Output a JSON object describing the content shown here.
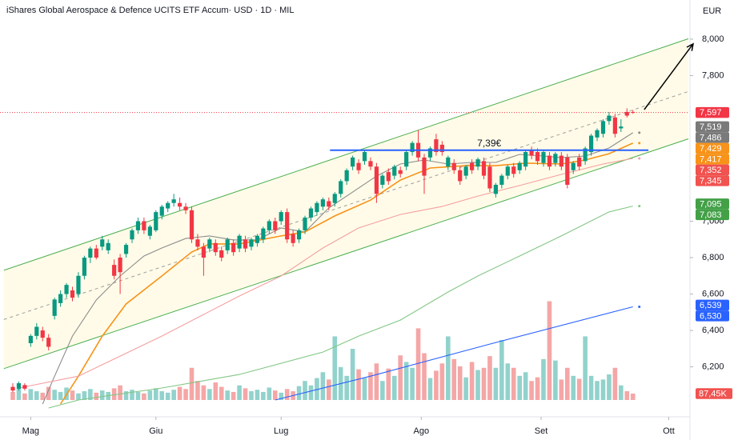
{
  "chart_data": {
    "type": "candlestick",
    "title": "iShares Global Aerospace & Defence UCITS ETF Accum· USD · 1D · MIL",
    "currency": "EUR",
    "xlim": [
      -2.15,
      113.3
    ],
    "ylim": [
      5.93,
      8.215
    ],
    "yticks": [
      {
        "value": 8.0,
        "label": "8,000"
      },
      {
        "value": 7.8,
        "label": "7,800"
      },
      {
        "value": 7.0,
        "label": "7,000"
      },
      {
        "value": 6.8,
        "label": "6,800"
      },
      {
        "value": 6.6,
        "label": "6,600"
      },
      {
        "value": 6.4,
        "label": "6,400"
      },
      {
        "value": 6.2,
        "label": "6,200"
      }
    ],
    "xticks": [
      {
        "value": 3,
        "label": "Mag"
      },
      {
        "value": 24,
        "label": "Giu"
      },
      {
        "value": 45,
        "label": "Lug"
      },
      {
        "value": 68.5,
        "label": "Ago"
      },
      {
        "value": 88.6,
        "label": "Set"
      },
      {
        "value": 110,
        "label": "Ott"
      }
    ],
    "up_color": "#089981",
    "down_color": "#f23645",
    "volume_up_color": "#92d2cc",
    "volume_down_color": "#f5a6a6",
    "volume_lim": [
      0,
      1400
    ],
    "ohlc": [
      [
        6.09,
        6.11,
        6.06,
        6.07
      ],
      [
        6.08,
        6.12,
        6.07,
        6.11
      ],
      [
        6.1,
        6.11,
        6.07,
        6.08
      ],
      [
        6.33,
        6.38,
        6.31,
        6.37
      ],
      [
        6.37,
        6.44,
        6.35,
        6.42
      ],
      [
        6.4,
        6.42,
        6.34,
        6.36
      ],
      [
        6.36,
        6.38,
        6.29,
        6.31
      ],
      [
        6.48,
        6.58,
        6.46,
        6.57
      ],
      [
        6.55,
        6.62,
        6.53,
        6.6
      ],
      [
        6.6,
        6.66,
        6.58,
        6.65
      ],
      [
        6.62,
        6.64,
        6.56,
        6.58
      ],
      [
        6.6,
        6.72,
        6.58,
        6.7
      ],
      [
        6.7,
        6.81,
        6.68,
        6.8
      ],
      [
        6.8,
        6.86,
        6.77,
        6.85
      ],
      [
        6.85,
        6.87,
        6.79,
        6.8
      ],
      [
        6.86,
        6.92,
        6.84,
        6.9
      ],
      [
        6.84,
        6.9,
        6.82,
        6.88
      ],
      [
        6.76,
        6.79,
        6.68,
        6.7
      ],
      [
        6.8,
        6.82,
        6.6,
        6.72
      ],
      [
        6.82,
        6.88,
        6.8,
        6.87
      ],
      [
        6.9,
        6.96,
        6.88,
        6.95
      ],
      [
        6.95,
        7.02,
        6.93,
        7.0
      ],
      [
        7.0,
        7.02,
        6.93,
        6.95
      ],
      [
        6.92,
        6.98,
        6.9,
        6.97
      ],
      [
        6.95,
        7.06,
        6.94,
        7.05
      ],
      [
        7.03,
        7.09,
        7.01,
        7.08
      ],
      [
        7.07,
        7.11,
        7.05,
        7.1
      ],
      [
        7.1,
        7.15,
        7.08,
        7.12
      ],
      [
        7.1,
        7.13,
        7.06,
        7.08
      ],
      [
        7.08,
        7.1,
        7.04,
        7.06
      ],
      [
        7.06,
        7.08,
        6.88,
        6.9
      ],
      [
        6.9,
        6.93,
        6.84,
        6.86
      ],
      [
        6.86,
        6.88,
        6.7,
        6.8
      ],
      [
        6.85,
        6.91,
        6.83,
        6.9
      ],
      [
        6.88,
        6.9,
        6.81,
        6.83
      ],
      [
        6.84,
        6.86,
        6.78,
        6.8
      ],
      [
        6.84,
        6.91,
        6.82,
        6.9
      ],
      [
        6.88,
        6.9,
        6.81,
        6.83
      ],
      [
        6.85,
        6.93,
        6.83,
        6.92
      ],
      [
        6.9,
        6.92,
        6.83,
        6.85
      ],
      [
        6.86,
        6.91,
        6.84,
        6.9
      ],
      [
        6.88,
        6.93,
        6.86,
        6.92
      ],
      [
        6.9,
        6.97,
        6.88,
        6.96
      ],
      [
        6.95,
        7.01,
        6.93,
        7.0
      ],
      [
        7.0,
        7.02,
        6.93,
        6.95
      ],
      [
        7.0,
        7.06,
        6.98,
        7.05
      ],
      [
        7.05,
        7.07,
        6.88,
        6.9
      ],
      [
        6.93,
        6.95,
        6.86,
        6.88
      ],
      [
        6.9,
        6.96,
        6.88,
        6.95
      ],
      [
        6.95,
        7.03,
        6.93,
        7.02
      ],
      [
        7.02,
        7.08,
        7.0,
        7.07
      ],
      [
        7.05,
        7.11,
        7.03,
        7.1
      ],
      [
        7.08,
        7.13,
        7.06,
        7.12
      ],
      [
        7.11,
        7.13,
        7.06,
        7.08
      ],
      [
        7.1,
        7.16,
        7.08,
        7.15
      ],
      [
        7.15,
        7.23,
        7.13,
        7.22
      ],
      [
        7.22,
        7.29,
        7.2,
        7.28
      ],
      [
        7.3,
        7.36,
        7.28,
        7.35
      ],
      [
        7.32,
        7.34,
        7.26,
        7.28
      ],
      [
        7.33,
        7.39,
        7.31,
        7.38
      ],
      [
        7.33,
        7.35,
        7.28,
        7.3
      ],
      [
        7.3,
        7.32,
        7.1,
        7.15
      ],
      [
        7.2,
        7.26,
        7.18,
        7.25
      ],
      [
        7.27,
        7.29,
        7.2,
        7.22
      ],
      [
        7.25,
        7.31,
        7.23,
        7.3
      ],
      [
        7.28,
        7.3,
        7.24,
        7.26
      ],
      [
        7.3,
        7.39,
        7.28,
        7.38
      ],
      [
        7.38,
        7.44,
        7.36,
        7.43
      ],
      [
        7.43,
        7.5,
        7.33,
        7.35
      ],
      [
        7.35,
        7.37,
        7.15,
        7.25
      ],
      [
        7.35,
        7.41,
        7.33,
        7.4
      ],
      [
        7.45,
        7.48,
        7.36,
        7.38
      ],
      [
        7.42,
        7.44,
        7.36,
        7.38
      ],
      [
        7.3,
        7.36,
        7.28,
        7.35
      ],
      [
        7.32,
        7.34,
        7.26,
        7.28
      ],
      [
        7.28,
        7.3,
        7.2,
        7.22
      ],
      [
        7.25,
        7.31,
        7.23,
        7.3
      ],
      [
        7.32,
        7.34,
        7.26,
        7.28
      ],
      [
        7.3,
        7.35,
        7.28,
        7.34
      ],
      [
        7.33,
        7.35,
        7.23,
        7.25
      ],
      [
        7.3,
        7.32,
        7.16,
        7.18
      ],
      [
        7.15,
        7.21,
        7.13,
        7.2
      ],
      [
        7.2,
        7.26,
        7.18,
        7.25
      ],
      [
        7.25,
        7.31,
        7.23,
        7.3
      ],
      [
        7.3,
        7.32,
        7.24,
        7.26
      ],
      [
        7.28,
        7.33,
        7.26,
        7.32
      ],
      [
        7.3,
        7.39,
        7.28,
        7.38
      ],
      [
        7.39,
        7.41,
        7.34,
        7.36
      ],
      [
        7.38,
        7.4,
        7.31,
        7.33
      ],
      [
        7.32,
        7.39,
        7.3,
        7.38
      ],
      [
        7.36,
        7.38,
        7.28,
        7.3
      ],
      [
        7.32,
        7.38,
        7.3,
        7.37
      ],
      [
        7.36,
        7.38,
        7.28,
        7.3
      ],
      [
        7.35,
        7.37,
        7.18,
        7.2
      ],
      [
        7.28,
        7.33,
        7.26,
        7.32
      ],
      [
        7.35,
        7.37,
        7.28,
        7.3
      ],
      [
        7.33,
        7.41,
        7.31,
        7.4
      ],
      [
        7.38,
        7.48,
        7.36,
        7.47
      ],
      [
        7.46,
        7.51,
        7.44,
        7.5
      ],
      [
        7.48,
        7.56,
        7.46,
        7.55
      ],
      [
        7.55,
        7.6,
        7.53,
        7.58
      ],
      [
        7.57,
        7.59,
        7.46,
        7.48
      ],
      [
        7.51,
        7.56,
        7.49,
        7.52
      ],
      [
        7.6,
        7.62,
        7.57,
        7.58
      ],
      [
        7.6,
        7.61,
        7.59,
        7.597
      ]
    ],
    "volume": [
      110,
      160,
      90,
      150,
      120,
      100,
      180,
      140,
      110,
      170,
      130,
      90,
      120,
      150,
      100,
      130,
      110,
      160,
      200,
      120,
      140,
      110,
      90,
      130,
      160,
      120,
      100,
      140,
      180,
      150,
      440,
      260,
      200,
      150,
      240,
      180,
      130,
      110,
      200,
      160,
      120,
      140,
      110,
      170,
      130,
      100,
      150,
      120,
      190,
      260,
      200,
      300,
      380,
      280,
      870,
      450,
      330,
      700,
      420,
      300,
      380,
      500,
      260,
      430,
      330,
      610,
      520,
      440,
      980,
      640,
      300,
      400,
      500,
      870,
      560,
      460,
      310,
      520,
      410,
      440,
      600,
      440,
      820,
      500,
      440,
      330,
      380,
      260,
      310,
      560,
      1350,
      540,
      280,
      440,
      330,
      290,
      870,
      330,
      260,
      280,
      350,
      440,
      200,
      120,
      87.45
    ],
    "volume_label": {
      "value": 87.45,
      "label": "87,45K",
      "color": "#f05350"
    },
    "channel": {
      "x": [
        -1.5,
        114
      ],
      "upper": [
        6.73,
        8.01
      ],
      "middle": [
        6.46,
        7.72
      ],
      "lower": [
        6.19,
        7.46
      ],
      "color": "#4caf50",
      "fill": "#fffbe8",
      "middle_color": "#9e9e9e"
    },
    "lines": [
      {
        "color": "#8c8c8c",
        "x": [
          5,
          7,
          10,
          14,
          18,
          22,
          25,
          29,
          33,
          37,
          41,
          45,
          49,
          53,
          57,
          61,
          65,
          69,
          73,
          77,
          81,
          85,
          89,
          92,
          96,
          100,
          104
        ],
        "values": [
          5.996,
          6.149,
          6.369,
          6.567,
          6.699,
          6.809,
          6.853,
          6.905,
          6.919,
          6.897,
          6.897,
          6.963,
          6.941,
          7.073,
          7.16,
          7.248,
          7.314,
          7.336,
          7.314,
          7.323,
          7.323,
          7.367,
          7.358,
          7.349,
          7.358,
          7.402,
          7.486
        ]
      },
      {
        "color": "#f7931a",
        "x": [
          8,
          11,
          15,
          19,
          25,
          30,
          33,
          38,
          45,
          49,
          54,
          60,
          65,
          70,
          76,
          81,
          86,
          92,
          96,
          100,
          104
        ],
        "values": [
          5.996,
          6.149,
          6.369,
          6.545,
          6.699,
          6.831,
          6.875,
          6.875,
          6.919,
          6.941,
          7.029,
          7.116,
          7.226,
          7.292,
          7.305,
          7.305,
          7.319,
          7.314,
          7.336,
          7.371,
          7.429
        ]
      },
      {
        "color": "#f4a0a0",
        "x": [
          1,
          11,
          25,
          38,
          45,
          52,
          58,
          65,
          72,
          78,
          85,
          92,
          99,
          104
        ],
        "values": [
          6.084,
          6.149,
          6.369,
          6.589,
          6.699,
          6.853,
          6.963,
          7.037,
          7.081,
          7.138,
          7.196,
          7.257,
          7.314,
          7.345
        ]
      },
      {
        "color": "#81c784",
        "x": [
          6,
          11,
          25,
          38,
          52,
          58,
          65,
          73,
          78,
          85,
          92,
          100,
          104
        ],
        "values": [
          5.974,
          6.018,
          6.084,
          6.158,
          6.281,
          6.369,
          6.457,
          6.611,
          6.699,
          6.809,
          6.919,
          7.051,
          7.083
        ]
      },
      {
        "color": "#2962ff",
        "x": [
          44,
          60,
          80,
          104
        ],
        "values": [
          6.018,
          6.149,
          6.325,
          6.53
        ]
      }
    ],
    "level": {
      "value": 7.39,
      "x": [
        53.2,
        106.6
      ],
      "label": "7,39€",
      "color": "#2962ff"
    },
    "arrow": {
      "x": [
        105.9,
        114.1
      ],
      "values": [
        7.613,
        7.974
      ]
    },
    "price_labels": [
      {
        "value": 7.597,
        "label": "7,597",
        "color": "#f23645"
      },
      {
        "value": 7.519,
        "label": "7,519",
        "color": "#7a7a7a"
      },
      {
        "value": 7.486,
        "label": "7,486",
        "color": "#7a7a7a"
      },
      {
        "value": 7.429,
        "label": "7,429",
        "color": "#f7931a"
      },
      {
        "value": 7.417,
        "label": "7,417",
        "color": "#f7931a"
      },
      {
        "value": 7.352,
        "label": "7,352",
        "color": "#f05350"
      },
      {
        "value": 7.345,
        "label": "7,345",
        "color": "#f05350"
      },
      {
        "value": 7.095,
        "label": "7,095",
        "color": "#43a047"
      },
      {
        "value": 7.083,
        "label": "7,083",
        "color": "#43a047"
      },
      {
        "value": 6.539,
        "label": "6,539",
        "color": "#2962ff"
      },
      {
        "value": 6.53,
        "label": "6,530",
        "color": "#2962ff"
      }
    ]
  }
}
